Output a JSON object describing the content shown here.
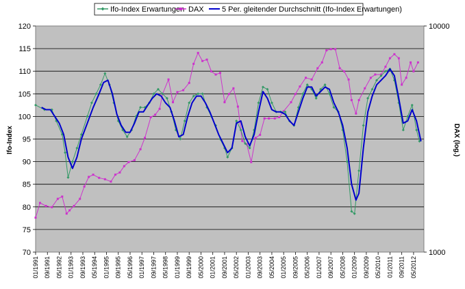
{
  "chart_data": {
    "type": "line",
    "ylabel_left": "Ifo-Index",
    "ylabel_right": "DAX (log.)",
    "ylim_left": [
      70,
      120
    ],
    "yticks_left": [
      70,
      75,
      80,
      85,
      90,
      95,
      100,
      105,
      110,
      115,
      120
    ],
    "ylim_right": [
      1000,
      10000
    ],
    "yticks_right": [
      1000,
      10000
    ],
    "right_scale": "log",
    "xlim": [
      "1991-01",
      "2012-12"
    ],
    "xticks": [
      "01/1991",
      "09/1991",
      "05/1992",
      "01/1993",
      "09/1993",
      "05/1994",
      "01/1995",
      "09/1995",
      "05/1996",
      "01/1997",
      "09/1997",
      "05/1998",
      "01/1999",
      "09/1999",
      "05/2000",
      "01/2001",
      "09/2001",
      "05/2002",
      "01/2003",
      "09/2003",
      "05/2004",
      "01/2005",
      "09/2005",
      "05/2006",
      "01/2007",
      "09/2007",
      "05/2008",
      "01/2009",
      "09/2009",
      "05/2010",
      "01/2011",
      "09/2011",
      "05/2012"
    ],
    "grid": true,
    "legend_position": "top",
    "plot_background": "#c0c0c0",
    "series": [
      {
        "name": "Ifo-Index Erwartungen",
        "color": "#339966",
        "axis": "left",
        "marker": "diamond",
        "points": [
          [
            "1991-01",
            102.5
          ],
          [
            "1991-07",
            101.5
          ],
          [
            "1991-12",
            101.5
          ],
          [
            "1992-03",
            99
          ],
          [
            "1992-07",
            96
          ],
          [
            "1992-09",
            92
          ],
          [
            "1992-11",
            86.5
          ],
          [
            "1993-02",
            90
          ],
          [
            "1993-05",
            93
          ],
          [
            "1993-08",
            96
          ],
          [
            "1993-12",
            100
          ],
          [
            "1994-03",
            103
          ],
          [
            "1994-06",
            105
          ],
          [
            "1994-09",
            107
          ],
          [
            "1994-12",
            109.5
          ],
          [
            "1995-03",
            107
          ],
          [
            "1995-06",
            103
          ],
          [
            "1995-09",
            99
          ],
          [
            "1995-12",
            97
          ],
          [
            "1996-03",
            95.5
          ],
          [
            "1996-06",
            97
          ],
          [
            "1996-09",
            100
          ],
          [
            "1996-12",
            102
          ],
          [
            "1997-03",
            102
          ],
          [
            "1997-06",
            103
          ],
          [
            "1997-09",
            105
          ],
          [
            "1997-12",
            106
          ],
          [
            "1998-03",
            105
          ],
          [
            "1998-06",
            104
          ],
          [
            "1998-09",
            101
          ],
          [
            "1998-12",
            97
          ],
          [
            "1999-03",
            95
          ],
          [
            "1999-06",
            99
          ],
          [
            "1999-09",
            103
          ],
          [
            "1999-12",
            104.5
          ],
          [
            "2000-03",
            105
          ],
          [
            "2000-06",
            105
          ],
          [
            "2000-09",
            102
          ],
          [
            "2000-12",
            100
          ],
          [
            "2001-03",
            98
          ],
          [
            "2001-06",
            95
          ],
          [
            "2001-09",
            93
          ],
          [
            "2001-11",
            91
          ],
          [
            "2002-02",
            93
          ],
          [
            "2002-05",
            99
          ],
          [
            "2002-08",
            97
          ],
          [
            "2002-11",
            94
          ],
          [
            "2003-02",
            93
          ],
          [
            "2003-05",
            97
          ],
          [
            "2003-08",
            103
          ],
          [
            "2003-11",
            106.5
          ],
          [
            "2004-02",
            106
          ],
          [
            "2004-05",
            103
          ],
          [
            "2004-08",
            101
          ],
          [
            "2004-11",
            101
          ],
          [
            "2005-02",
            101
          ],
          [
            "2005-05",
            99
          ],
          [
            "2005-08",
            98
          ],
          [
            "2005-11",
            102
          ],
          [
            "2006-02",
            105
          ],
          [
            "2006-05",
            107
          ],
          [
            "2006-08",
            106
          ],
          [
            "2006-11",
            104
          ],
          [
            "2007-02",
            106
          ],
          [
            "2007-05",
            107
          ],
          [
            "2007-08",
            105
          ],
          [
            "2007-11",
            102
          ],
          [
            "2008-02",
            101
          ],
          [
            "2008-05",
            97
          ],
          [
            "2008-08",
            90
          ],
          [
            "2008-11",
            79
          ],
          [
            "2009-01",
            78.5
          ],
          [
            "2009-04",
            88
          ],
          [
            "2009-07",
            98
          ],
          [
            "2009-10",
            104
          ],
          [
            "2010-01",
            106
          ],
          [
            "2010-04",
            108
          ],
          [
            "2010-07",
            109
          ],
          [
            "2010-10",
            110
          ],
          [
            "2011-01",
            110.5
          ],
          [
            "2011-04",
            108
          ],
          [
            "2011-07",
            103
          ],
          [
            "2011-10",
            97
          ],
          [
            "2012-01",
            100
          ],
          [
            "2012-04",
            102.5
          ],
          [
            "2012-07",
            97
          ],
          [
            "2012-09",
            94.5
          ]
        ]
      },
      {
        "name": "DAX",
        "color": "#cc33cc",
        "axis": "right",
        "marker": "square",
        "points": [
          [
            "1991-01",
            1420
          ],
          [
            "1991-04",
            1650
          ],
          [
            "1991-08",
            1600
          ],
          [
            "1991-12",
            1580
          ],
          [
            "1992-04",
            1720
          ],
          [
            "1992-07",
            1760
          ],
          [
            "1992-10",
            1480
          ],
          [
            "1992-12",
            1530
          ],
          [
            "1993-03",
            1600
          ],
          [
            "1993-07",
            1720
          ],
          [
            "1993-10",
            1950
          ],
          [
            "1994-01",
            2150
          ],
          [
            "1994-04",
            2200
          ],
          [
            "1994-08",
            2130
          ],
          [
            "1994-12",
            2100
          ],
          [
            "1995-04",
            2050
          ],
          [
            "1995-07",
            2200
          ],
          [
            "1995-10",
            2250
          ],
          [
            "1996-01",
            2400
          ],
          [
            "1996-04",
            2500
          ],
          [
            "1996-08",
            2550
          ],
          [
            "1996-12",
            2850
          ],
          [
            "1997-03",
            3200
          ],
          [
            "1997-07",
            3950
          ],
          [
            "1997-10",
            4050
          ],
          [
            "1998-01",
            4300
          ],
          [
            "1998-03",
            5000
          ],
          [
            "1998-07",
            5800
          ],
          [
            "1998-10",
            4600
          ],
          [
            "1999-01",
            5100
          ],
          [
            "1999-05",
            5200
          ],
          [
            "1999-09",
            5600
          ],
          [
            "1999-12",
            6800
          ],
          [
            "2000-03",
            7600
          ],
          [
            "2000-06",
            7000
          ],
          [
            "2000-09",
            7100
          ],
          [
            "2000-12",
            6300
          ],
          [
            "2001-03",
            6100
          ],
          [
            "2001-06",
            6200
          ],
          [
            "2001-09",
            4600
          ],
          [
            "2001-12",
            5000
          ],
          [
            "2002-03",
            5300
          ],
          [
            "2002-06",
            4400
          ],
          [
            "2002-09",
            3100
          ],
          [
            "2002-12",
            3000
          ],
          [
            "2003-03",
            2500
          ],
          [
            "2003-06",
            3200
          ],
          [
            "2003-09",
            3300
          ],
          [
            "2003-12",
            3900
          ],
          [
            "2004-03",
            3900
          ],
          [
            "2004-07",
            3900
          ],
          [
            "2004-10",
            3950
          ],
          [
            "2005-01",
            4200
          ],
          [
            "2005-06",
            4600
          ],
          [
            "2005-09",
            5000
          ],
          [
            "2005-12",
            5400
          ],
          [
            "2006-04",
            5900
          ],
          [
            "2006-08",
            5800
          ],
          [
            "2006-12",
            6500
          ],
          [
            "2007-03",
            6900
          ],
          [
            "2007-06",
            7800
          ],
          [
            "2007-09",
            7900
          ],
          [
            "2007-12",
            7900
          ],
          [
            "2008-03",
            6500
          ],
          [
            "2008-06",
            6300
          ],
          [
            "2008-09",
            5800
          ],
          [
            "2008-11",
            4700
          ],
          [
            "2009-02",
            4100
          ],
          [
            "2009-04",
            4700
          ],
          [
            "2009-08",
            5300
          ],
          [
            "2009-12",
            5900
          ],
          [
            "2010-03",
            6100
          ],
          [
            "2010-07",
            6100
          ],
          [
            "2010-10",
            6600
          ],
          [
            "2011-01",
            7200
          ],
          [
            "2011-04",
            7500
          ],
          [
            "2011-07",
            7200
          ],
          [
            "2011-09",
            5500
          ],
          [
            "2011-12",
            5900
          ],
          [
            "2012-03",
            6900
          ],
          [
            "2012-05",
            6300
          ],
          [
            "2012-08",
            6900
          ]
        ]
      },
      {
        "name": "5 Per. gleitender Durchschnitt (Ifo-Index Erwartungen)",
        "color": "#0000cc",
        "axis": "left",
        "marker": "none",
        "points": [
          [
            "1991-05",
            102
          ],
          [
            "1991-08",
            101.5
          ],
          [
            "1991-11",
            101.5
          ],
          [
            "1992-02",
            100
          ],
          [
            "1992-05",
            98.5
          ],
          [
            "1992-08",
            96
          ],
          [
            "1992-11",
            91
          ],
          [
            "1993-02",
            88.5
          ],
          [
            "1993-05",
            91
          ],
          [
            "1993-08",
            95
          ],
          [
            "1993-12",
            98.5
          ],
          [
            "1994-04",
            102
          ],
          [
            "1994-08",
            105
          ],
          [
            "1994-11",
            107.5
          ],
          [
            "1995-02",
            108
          ],
          [
            "1995-05",
            105
          ],
          [
            "1995-08",
            100.5
          ],
          [
            "1995-11",
            98
          ],
          [
            "1996-02",
            96.5
          ],
          [
            "1996-05",
            96.5
          ],
          [
            "1996-08",
            98.5
          ],
          [
            "1996-11",
            101
          ],
          [
            "1997-02",
            101
          ],
          [
            "1997-05",
            102.5
          ],
          [
            "1997-08",
            104
          ],
          [
            "1997-11",
            105
          ],
          [
            "1998-02",
            104.5
          ],
          [
            "1998-05",
            103
          ],
          [
            "1998-08",
            102
          ],
          [
            "1998-11",
            99
          ],
          [
            "1999-02",
            95.5
          ],
          [
            "1999-05",
            96
          ],
          [
            "1999-08",
            100
          ],
          [
            "1999-11",
            103
          ],
          [
            "2000-02",
            104.5
          ],
          [
            "2000-05",
            104.5
          ],
          [
            "2000-08",
            103
          ],
          [
            "2000-11",
            101
          ],
          [
            "2001-02",
            98.5
          ],
          [
            "2001-05",
            96
          ],
          [
            "2001-08",
            94
          ],
          [
            "2001-11",
            92
          ],
          [
            "2002-02",
            93
          ],
          [
            "2002-05",
            98.5
          ],
          [
            "2002-08",
            99
          ],
          [
            "2002-11",
            95.5
          ],
          [
            "2003-02",
            93.5
          ],
          [
            "2003-05",
            96
          ],
          [
            "2003-08",
            101
          ],
          [
            "2003-11",
            105.5
          ],
          [
            "2004-02",
            104
          ],
          [
            "2004-05",
            101.5
          ],
          [
            "2004-08",
            101
          ],
          [
            "2004-11",
            101
          ],
          [
            "2005-02",
            100.5
          ],
          [
            "2005-05",
            99
          ],
          [
            "2005-08",
            98
          ],
          [
            "2005-11",
            101
          ],
          [
            "2006-02",
            104
          ],
          [
            "2006-05",
            106.5
          ],
          [
            "2006-08",
            106.5
          ],
          [
            "2006-11",
            104.5
          ],
          [
            "2007-02",
            105.5
          ],
          [
            "2007-05",
            106.5
          ],
          [
            "2007-08",
            106
          ],
          [
            "2007-11",
            103
          ],
          [
            "2008-02",
            101
          ],
          [
            "2008-05",
            98
          ],
          [
            "2008-08",
            93
          ],
          [
            "2008-11",
            85
          ],
          [
            "2009-02",
            81.5
          ],
          [
            "2009-04",
            83
          ],
          [
            "2009-07",
            93
          ],
          [
            "2009-10",
            101
          ],
          [
            "2010-01",
            104.5
          ],
          [
            "2010-04",
            107
          ],
          [
            "2010-07",
            108
          ],
          [
            "2010-10",
            109
          ],
          [
            "2011-01",
            110.5
          ],
          [
            "2011-04",
            109
          ],
          [
            "2011-07",
            104
          ],
          [
            "2011-10",
            98.5
          ],
          [
            "2012-01",
            99
          ],
          [
            "2012-04",
            101.5
          ],
          [
            "2012-07",
            99
          ],
          [
            "2012-10",
            94.5
          ]
        ]
      }
    ]
  }
}
